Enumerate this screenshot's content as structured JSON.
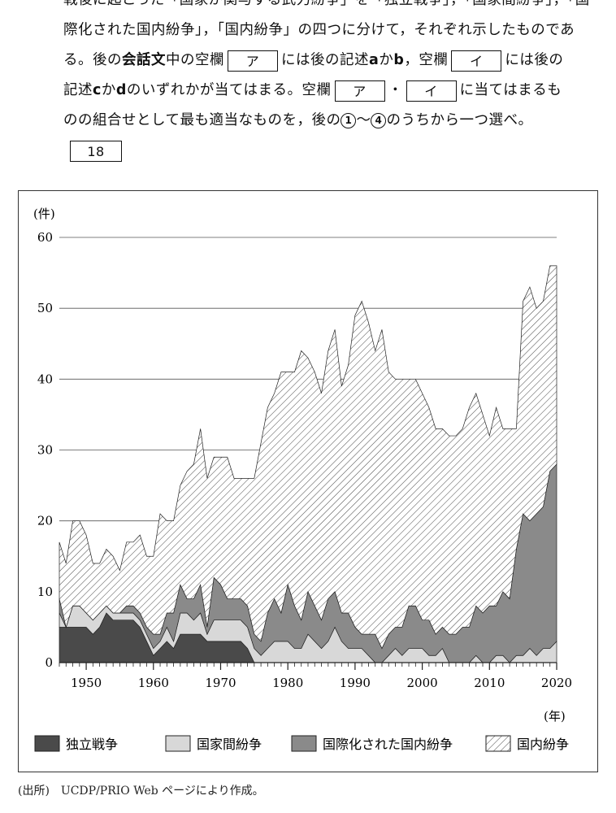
{
  "question": {
    "line1": "戦後に起こった「国家が関与する武力紛争」を「独立戦争」，「国家間紛争」，「国",
    "line2": "際化された国内紛争」，「国内紛争」の四つに分けて，それぞれ示したものであ",
    "line3_a": "る。後の",
    "line3_bold": "会話文",
    "line3_b": "中の空欄",
    "box_a": "ア",
    "line3_c": "には後の記述",
    "a": "a",
    "ka1": "か",
    "b": "b",
    "line3_d": "，空欄",
    "box_i": "イ",
    "line3_e": "には後の",
    "line4_a": "記述",
    "c": "c",
    "ka2": "か",
    "d": "d",
    "line4_b": "のいずれかが当てはまる。空欄",
    "dot": "・",
    "line4_c": "に当てはまるも",
    "line5_a": "のの組合せとして最も適当なものを，後の",
    "opt1": "1",
    "tilde": "～",
    "opt4": "4",
    "line5_b": "のうちから一つ選べ。",
    "answer_box": "18"
  },
  "chart_data": {
    "type": "area",
    "stacked": true,
    "ylabel": "(件)",
    "xlabel": "(年)",
    "ylim": [
      0,
      60
    ],
    "xlim": [
      1946,
      2020
    ],
    "yticks": [
      0,
      10,
      20,
      30,
      40,
      50,
      60
    ],
    "xticks": [
      1950,
      1960,
      1970,
      1980,
      1990,
      2000,
      2010,
      2020
    ],
    "grid": "horizontal",
    "legend_position": "bottom",
    "x": [
      1946,
      1947,
      1948,
      1949,
      1950,
      1951,
      1952,
      1953,
      1954,
      1955,
      1956,
      1957,
      1958,
      1959,
      1960,
      1961,
      1962,
      1963,
      1964,
      1965,
      1966,
      1967,
      1968,
      1969,
      1970,
      1971,
      1972,
      1973,
      1974,
      1975,
      1976,
      1977,
      1978,
      1979,
      1980,
      1981,
      1982,
      1983,
      1984,
      1985,
      1986,
      1987,
      1988,
      1989,
      1990,
      1991,
      1992,
      1993,
      1994,
      1995,
      1996,
      1997,
      1998,
      1999,
      2000,
      2001,
      2002,
      2003,
      2004,
      2005,
      2006,
      2007,
      2008,
      2009,
      2010,
      2011,
      2012,
      2013,
      2014,
      2015,
      2016,
      2017,
      2018,
      2019,
      2020
    ],
    "series": [
      {
        "name": "独立戦争",
        "color": "#4a4a4a",
        "values": [
          5,
          5,
          5,
          5,
          5,
          4,
          5,
          7,
          6,
          6,
          6,
          6,
          5,
          3,
          1,
          2,
          3,
          2,
          4,
          4,
          4,
          4,
          3,
          3,
          3,
          3,
          3,
          3,
          2,
          0,
          0,
          0,
          0,
          0,
          0,
          0,
          0,
          0,
          0,
          0,
          0,
          0,
          0,
          0,
          0,
          0,
          0,
          0,
          0,
          0,
          0,
          0,
          0,
          0,
          0,
          0,
          0,
          0,
          0,
          0,
          0,
          0,
          0,
          0,
          0,
          0,
          0,
          0,
          0,
          0,
          0,
          0,
          0,
          0,
          0
        ]
      },
      {
        "name": "国家間紛争",
        "color": "#d8d8d8",
        "values": [
          2,
          0,
          3,
          3,
          2,
          2,
          2,
          1,
          1,
          1,
          1,
          1,
          1,
          1,
          1,
          1,
          2,
          1,
          3,
          3,
          2,
          3,
          1,
          3,
          3,
          3,
          3,
          3,
          3,
          2,
          1,
          2,
          3,
          3,
          3,
          2,
          2,
          4,
          3,
          2,
          3,
          5,
          3,
          2,
          2,
          2,
          1,
          0,
          0,
          1,
          2,
          1,
          2,
          2,
          2,
          1,
          1,
          2,
          0,
          0,
          0,
          0,
          1,
          0,
          0,
          1,
          1,
          0,
          1,
          1,
          2,
          1,
          2,
          2,
          3
        ]
      },
      {
        "name": "国際化された国内紛争",
        "color": "#8a8a8a",
        "values": [
          2,
          0,
          0,
          0,
          0,
          0,
          0,
          0,
          0,
          0,
          1,
          1,
          1,
          1,
          2,
          1,
          2,
          4,
          4,
          2,
          3,
          4,
          1,
          6,
          5,
          3,
          3,
          3,
          3,
          2,
          2,
          5,
          6,
          4,
          8,
          6,
          4,
          6,
          5,
          4,
          6,
          5,
          4,
          5,
          3,
          2,
          3,
          4,
          2,
          3,
          3,
          4,
          6,
          6,
          4,
          5,
          3,
          3,
          4,
          4,
          5,
          5,
          7,
          7,
          8,
          7,
          9,
          9,
          15,
          20,
          18,
          20,
          20,
          25,
          25
        ]
      },
      {
        "name": "国内紛争",
        "color": "hatch",
        "values": [
          8,
          9,
          12,
          12,
          11,
          8,
          7,
          8,
          8,
          6,
          9,
          9,
          11,
          10,
          11,
          17,
          13,
          13,
          14,
          18,
          19,
          22,
          21,
          17,
          18,
          20,
          17,
          17,
          18,
          22,
          28,
          29,
          29,
          34,
          30,
          33,
          38,
          33,
          33,
          32,
          35,
          37,
          32,
          35,
          44,
          47,
          44,
          40,
          45,
          37,
          35,
          35,
          32,
          32,
          32,
          30,
          29,
          28,
          28,
          28,
          28,
          31,
          30,
          28,
          24,
          28,
          23,
          24,
          17,
          30,
          33,
          29,
          29,
          29,
          28
        ]
      }
    ]
  },
  "legend": {
    "items": [
      "独立戦争",
      "国家間紛争",
      "国際化された国内紛争",
      "国内紛争"
    ]
  },
  "source": "(出所)　UCDP/PRIO Web ページにより作成。"
}
